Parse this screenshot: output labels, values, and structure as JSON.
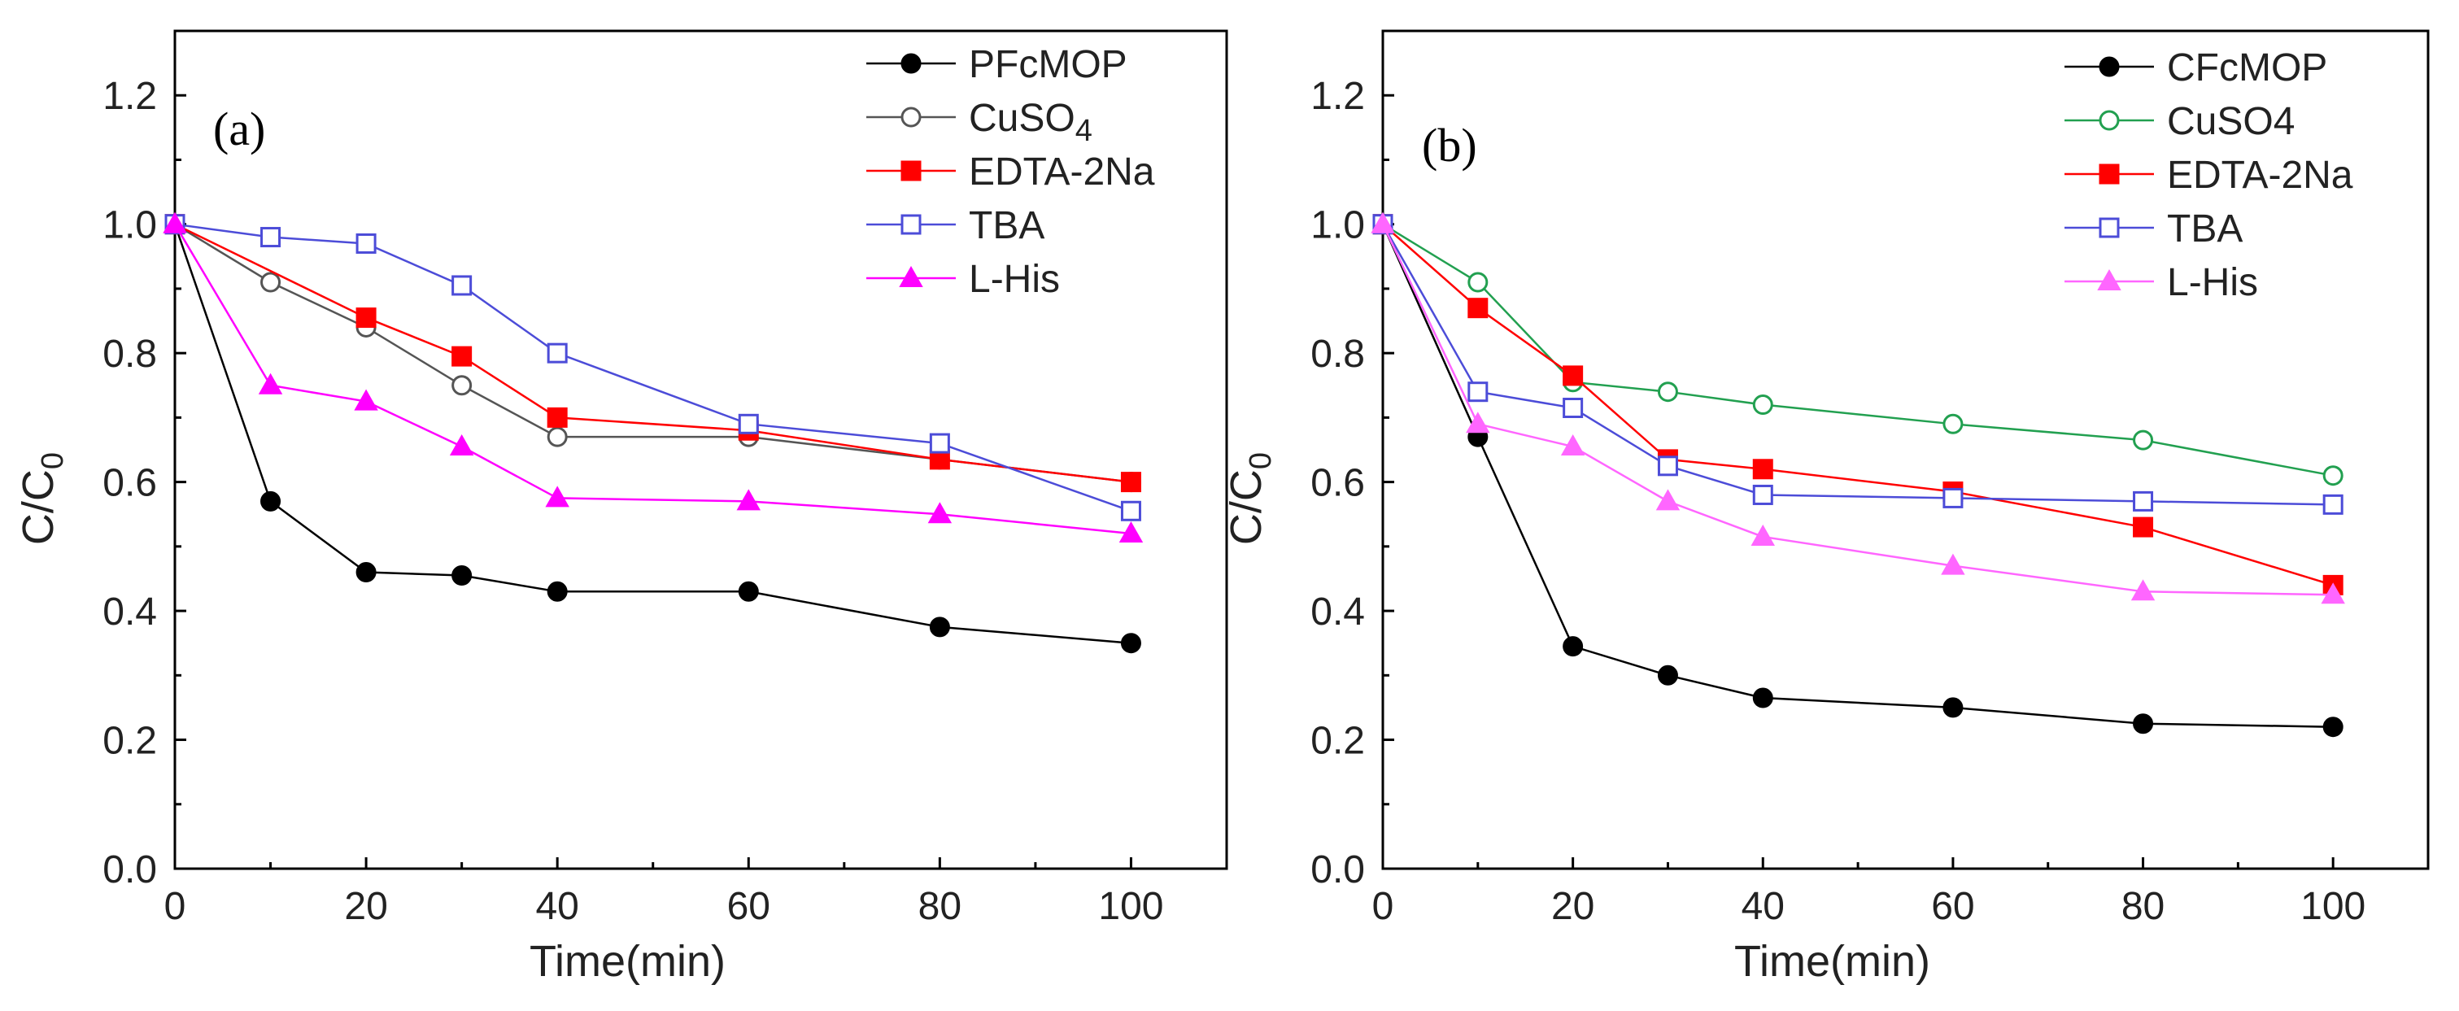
{
  "chart_data": [
    {
      "type": "line",
      "panel_label": "(a)",
      "xlabel": "Time(min)",
      "ylabel_main": "C/C",
      "ylabel_sub": "0",
      "xlim": [
        0,
        110
      ],
      "ylim": [
        0,
        1.3
      ],
      "xticks": [
        0,
        20,
        40,
        60,
        80,
        100
      ],
      "xtick_labels": [
        "0",
        "20",
        "40",
        "60",
        "80",
        "100"
      ],
      "yticks": [
        0,
        0.2,
        0.4,
        0.6,
        0.8,
        1.0,
        1.2
      ],
      "ytick_labels": [
        "0.0",
        "0.2",
        "0.4",
        "0.6",
        "0.8",
        "1.0",
        "1.2"
      ],
      "legend_position": "top-right",
      "series": [
        {
          "name": "PFcMOP",
          "name_main": "PFcMOP",
          "name_sub": "",
          "color": "#000000",
          "marker": "circle",
          "filled": true,
          "x": [
            0,
            10,
            20,
            30,
            40,
            60,
            80,
            100
          ],
          "y": [
            1.0,
            0.57,
            0.46,
            0.455,
            0.43,
            0.43,
            0.375,
            0.35
          ]
        },
        {
          "name": "CuSO4",
          "name_main": "CuSO",
          "name_sub": "4",
          "color": "#555555",
          "marker": "circle",
          "filled": false,
          "x": [
            0,
            10,
            20,
            30,
            40,
            60,
            80,
            100
          ],
          "y": [
            1.0,
            0.91,
            0.84,
            0.75,
            0.67,
            0.67,
            0.635,
            0.6
          ]
        },
        {
          "name": "EDTA-2Na",
          "name_main": "EDTA-2Na",
          "name_sub": "",
          "color": "#ff0000",
          "marker": "square",
          "filled": true,
          "x": [
            0,
            20,
            30,
            40,
            60,
            80,
            100
          ],
          "y": [
            1.0,
            0.855,
            0.795,
            0.7,
            0.68,
            0.635,
            0.6
          ]
        },
        {
          "name": "TBA",
          "name_main": "TBA",
          "name_sub": "",
          "color": "#4c4cd8",
          "marker": "square",
          "filled": false,
          "x": [
            0,
            10,
            20,
            30,
            40,
            60,
            80,
            100
          ],
          "y": [
            1.0,
            0.98,
            0.97,
            0.905,
            0.8,
            0.69,
            0.66,
            0.555
          ]
        },
        {
          "name": "L-His",
          "name_main": "L-His",
          "name_sub": "",
          "color": "#ff00ff",
          "marker": "triangle",
          "filled": true,
          "x": [
            0,
            10,
            20,
            30,
            40,
            60,
            80,
            100
          ],
          "y": [
            1.0,
            0.75,
            0.725,
            0.655,
            0.575,
            0.57,
            0.55,
            0.52
          ]
        }
      ]
    },
    {
      "type": "line",
      "panel_label": "(b)",
      "xlabel": "Time(min)",
      "ylabel_main": "C/C",
      "ylabel_sub": "0",
      "xlim": [
        0,
        110
      ],
      "ylim": [
        0,
        1.3
      ],
      "xticks": [
        0,
        20,
        40,
        60,
        80,
        100
      ],
      "xtick_labels": [
        "0",
        "20",
        "40",
        "60",
        "80",
        "100"
      ],
      "yticks": [
        0,
        0.2,
        0.4,
        0.6,
        0.8,
        1.0,
        1.2
      ],
      "ytick_labels": [
        "0.0",
        "0.2",
        "0.4",
        "0.6",
        "0.8",
        "1.0",
        "1.2"
      ],
      "legend_position": "top-right",
      "series": [
        {
          "name": "CFcMOP",
          "name_main": "CFcMOP",
          "name_sub": "",
          "color": "#000000",
          "marker": "circle",
          "filled": true,
          "x": [
            0,
            10,
            20,
            30,
            40,
            60,
            80,
            100
          ],
          "y": [
            1.0,
            0.67,
            0.345,
            0.3,
            0.265,
            0.25,
            0.225,
            0.22
          ]
        },
        {
          "name": "CuSO4",
          "name_main": "CuSO4",
          "name_sub": "",
          "color": "#22a050",
          "marker": "circle",
          "filled": false,
          "x": [
            0,
            10,
            20,
            30,
            40,
            60,
            80,
            100
          ],
          "y": [
            1.0,
            0.91,
            0.755,
            0.74,
            0.72,
            0.69,
            0.665,
            0.61
          ]
        },
        {
          "name": "EDTA-2Na",
          "name_main": "EDTA-2Na",
          "name_sub": "",
          "color": "#ff0000",
          "marker": "square",
          "filled": true,
          "x": [
            0,
            10,
            20,
            30,
            40,
            60,
            80,
            100
          ],
          "y": [
            1.0,
            0.87,
            0.765,
            0.635,
            0.62,
            0.585,
            0.53,
            0.44
          ]
        },
        {
          "name": "TBA",
          "name_main": "TBA",
          "name_sub": "",
          "color": "#4c4cd8",
          "marker": "square",
          "filled": false,
          "x": [
            0,
            10,
            20,
            30,
            40,
            60,
            80,
            100
          ],
          "y": [
            1.0,
            0.74,
            0.715,
            0.625,
            0.58,
            0.575,
            0.57,
            0.565
          ]
        },
        {
          "name": "L-His",
          "name_main": "L-His",
          "name_sub": "",
          "color": "#ff66ff",
          "marker": "triangle",
          "filled": true,
          "x": [
            0,
            10,
            20,
            30,
            40,
            60,
            80,
            100
          ],
          "y": [
            1.0,
            0.69,
            0.655,
            0.57,
            0.515,
            0.47,
            0.43,
            0.425
          ]
        }
      ]
    }
  ]
}
